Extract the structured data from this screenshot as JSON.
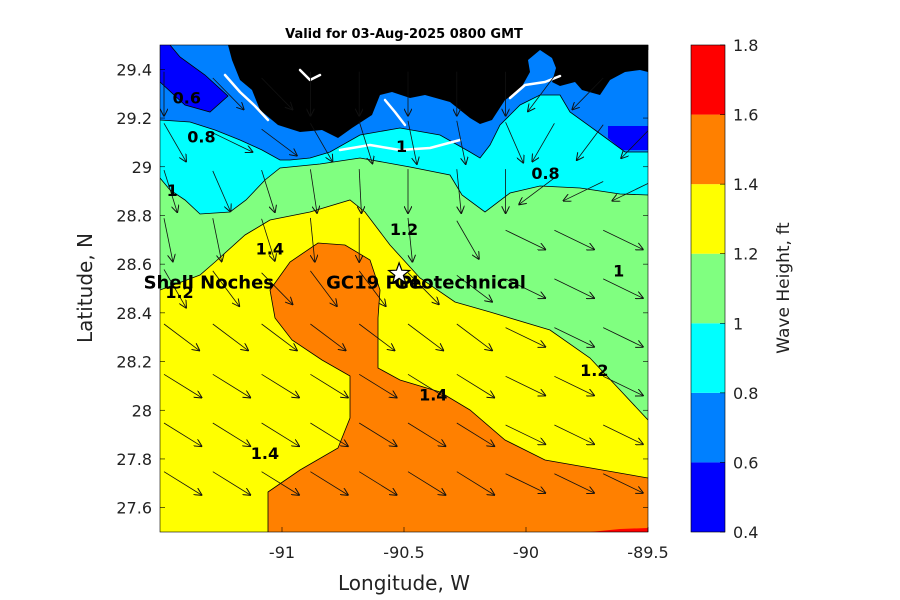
{
  "chart_data": {
    "type": "heatmap",
    "title": "Valid for 03-Aug-2025 0800 GMT",
    "xlabel": "Longitude, W",
    "ylabel": "Latitude, N",
    "xlim": [
      -91.5,
      -89.5
    ],
    "ylim": [
      27.5,
      29.5
    ],
    "x_ticks": [
      -91,
      -90.5,
      -90,
      -89.5
    ],
    "x_tick_labels": [
      "-91",
      "-90.5",
      "-90",
      "-89.5"
    ],
    "y_ticks": [
      27.6,
      27.8,
      28,
      28.2,
      28.4,
      28.6,
      28.8,
      29,
      29.2,
      29.4
    ],
    "y_tick_labels": [
      "27.6",
      "27.8",
      "28",
      "28.2",
      "28.4",
      "28.6",
      "28.8",
      "29",
      "29.2",
      "29.4"
    ],
    "colorbar": {
      "label": "Wave Height, ft",
      "levels": [
        0.4,
        0.6,
        0.8,
        1.0,
        1.2,
        1.4,
        1.6,
        1.8
      ],
      "tick_labels": [
        "0.4",
        "0.6",
        "0.8",
        "1",
        "1.2",
        "1.4",
        "1.6",
        "1.8"
      ],
      "colors": [
        "#0000ff",
        "#0080ff",
        "#00ffff",
        "#80ff80",
        "#ffff00",
        "#ff8000",
        "#ff0000"
      ]
    },
    "contour_labels": [
      {
        "text": "0.6",
        "lon": -91.39,
        "lat": 29.26
      },
      {
        "text": "0.8",
        "lon": -91.33,
        "lat": 29.1
      },
      {
        "text": "0.8",
        "lon": -89.92,
        "lat": 28.95
      },
      {
        "text": "1",
        "lon": -91.45,
        "lat": 28.88
      },
      {
        "text": "1",
        "lon": -89.62,
        "lat": 28.55
      },
      {
        "text": "1",
        "lon": -90.51,
        "lat": 29.06
      },
      {
        "text": "1.2",
        "lon": -90.5,
        "lat": 28.72
      },
      {
        "text": "1.2",
        "lon": -89.72,
        "lat": 28.14
      },
      {
        "text": "1.2",
        "lon": -91.42,
        "lat": 28.46
      },
      {
        "text": "1.4",
        "lon": -91.05,
        "lat": 28.64
      },
      {
        "text": "1.4",
        "lon": -90.38,
        "lat": 28.04
      },
      {
        "text": "1.4",
        "lon": -91.07,
        "lat": 27.8
      }
    ],
    "annotations": [
      {
        "text": "Shell Noches",
        "lon": -91.3,
        "lat": 28.5
      },
      {
        "text": "GC19 PPL",
        "lon": -90.62,
        "lat": 28.5
      },
      {
        "text": "Geotechnical",
        "lon": -90.27,
        "lat": 28.5
      }
    ],
    "site_marker": {
      "type": "star",
      "lon": -90.52,
      "lat": 28.56
    },
    "wave_field": [
      {
        "lat": 29.3,
        "u": [
          0.0,
          0.7,
          0.7,
          0.0,
          0.0,
          0.0,
          0.0,
          0.0,
          -0.6,
          -0.7,
          0.0
        ]
      },
      {
        "lat": 29.1,
        "u": [
          0.5,
          0.9,
          0.8,
          0.5,
          0.3,
          0.2,
          0.2,
          0.4,
          -0.5,
          -0.6,
          -0.7
        ]
      },
      {
        "lat": 28.9,
        "u": [
          0.3,
          0.4,
          0.3,
          0.15,
          0.05,
          0.0,
          0.1,
          0.0,
          -0.8,
          -0.9,
          -0.9
        ]
      },
      {
        "lat": 28.7,
        "u": [
          0.2,
          0.2,
          0.3,
          0.1,
          0.0,
          0.1,
          0.5,
          0.9,
          0.9,
          0.9,
          0.9
        ]
      },
      {
        "lat": 28.5,
        "u": [
          0.5,
          0.6,
          0.7,
          0.6,
          0.6,
          0.7,
          0.8,
          0.9,
          0.9,
          0.9,
          0.9
        ]
      },
      {
        "lat": 28.3,
        "u": [
          0.8,
          0.8,
          0.8,
          0.8,
          0.8,
          0.8,
          0.8,
          0.9,
          0.9,
          0.9,
          0.9
        ]
      },
      {
        "lat": 28.1,
        "u": [
          0.85,
          0.85,
          0.85,
          0.85,
          0.85,
          0.85,
          0.85,
          0.9,
          0.9,
          0.9,
          0.9
        ]
      },
      {
        "lat": 27.9,
        "u": [
          0.85,
          0.85,
          0.85,
          0.85,
          0.85,
          0.85,
          0.85,
          0.9,
          0.9,
          0.9,
          0.9
        ]
      },
      {
        "lat": 27.7,
        "u": [
          0.85,
          0.85,
          0.85,
          0.85,
          0.85,
          0.85,
          0.85,
          0.9,
          0.9,
          0.9,
          0.9
        ]
      }
    ]
  }
}
